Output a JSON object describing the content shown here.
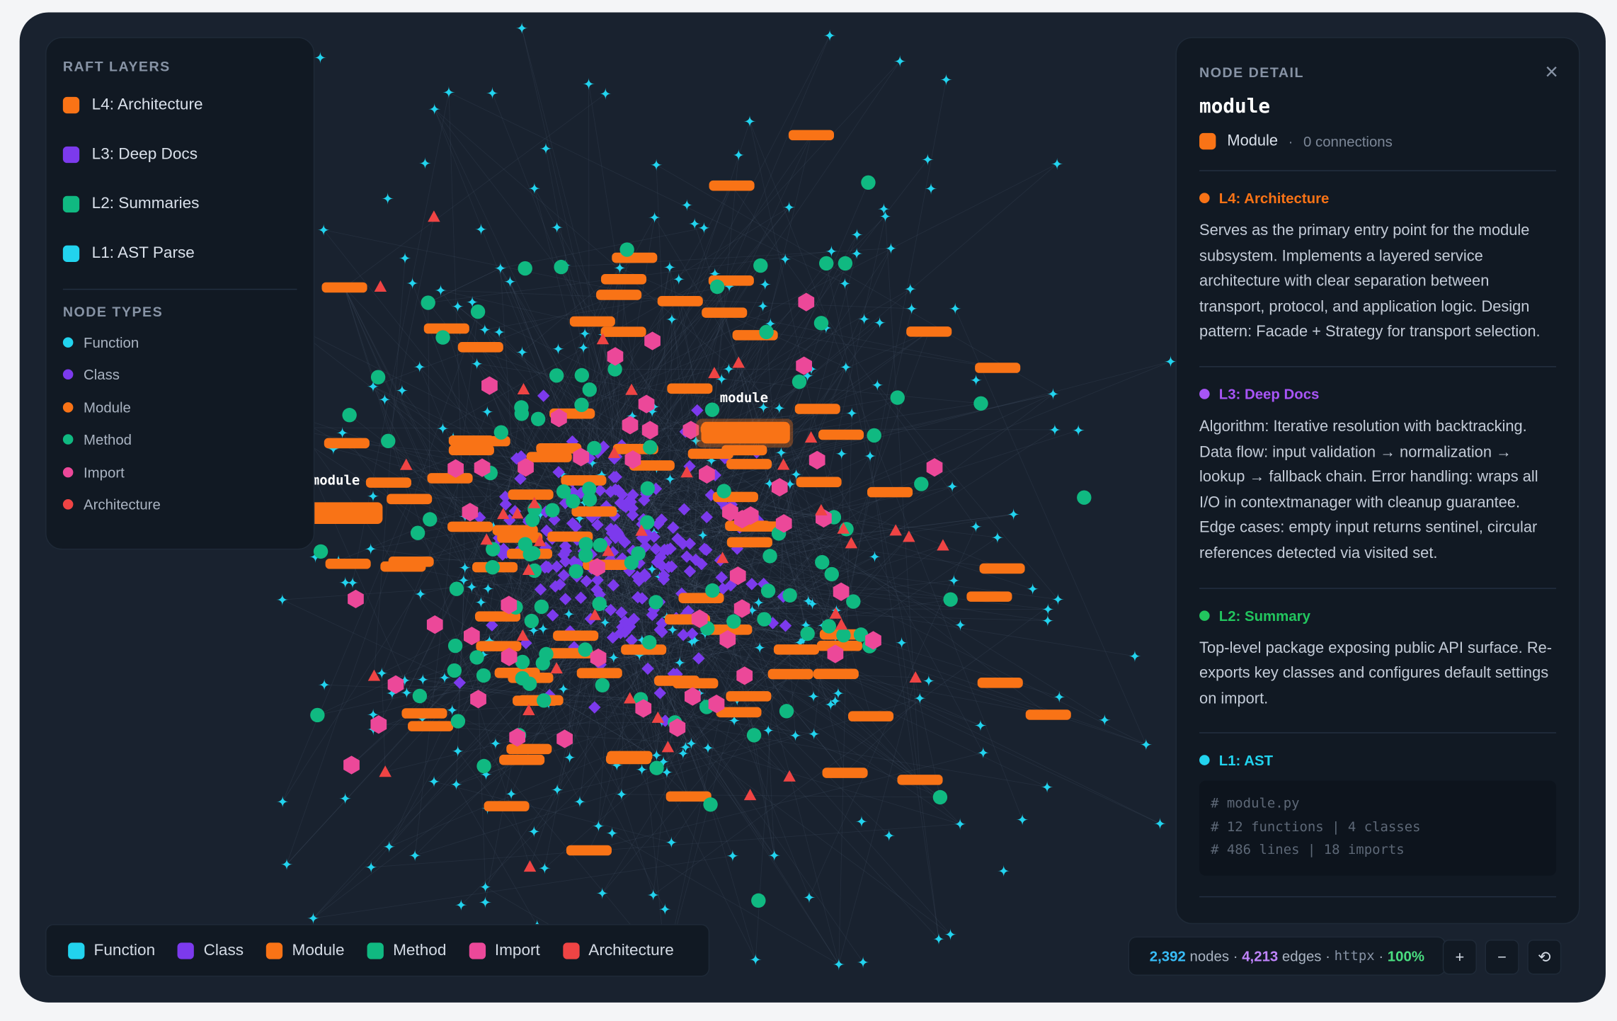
{
  "layers_panel": {
    "title": "RAFT LAYERS",
    "layers": [
      {
        "label": "L4: Architecture",
        "color": "#f97316"
      },
      {
        "label": "L3: Deep Docs",
        "color": "#7c3aed"
      },
      {
        "label": "L2: Summaries",
        "color": "#10b981"
      },
      {
        "label": "L1: AST Parse",
        "color": "#22d3ee"
      }
    ]
  },
  "node_types_panel": {
    "title": "NODE TYPES",
    "types": [
      {
        "label": "Function",
        "color": "#22d3ee"
      },
      {
        "label": "Class",
        "color": "#7c3aed"
      },
      {
        "label": "Module",
        "color": "#f97316"
      },
      {
        "label": "Method",
        "color": "#10b981"
      },
      {
        "label": "Import",
        "color": "#ec4899"
      },
      {
        "label": "Architecture",
        "color": "#ef4444"
      }
    ]
  },
  "graph": {
    "labels": [
      "module",
      "module"
    ]
  },
  "legend": {
    "items": [
      {
        "label": "Function",
        "color": "#22d3ee"
      },
      {
        "label": "Class",
        "color": "#7c3aed"
      },
      {
        "label": "Module",
        "color": "#f97316"
      },
      {
        "label": "Method",
        "color": "#10b981"
      },
      {
        "label": "Import",
        "color": "#ec4899"
      },
      {
        "label": "Architecture",
        "color": "#ef4444"
      }
    ]
  },
  "detail": {
    "title": "NODE DETAIL",
    "close": "×",
    "name": "module",
    "type": "Module",
    "type_color": "#f97316",
    "separator": "·",
    "connections": "0 connections",
    "sections": [
      {
        "heading": "L4: Architecture",
        "color": "#f97316",
        "text": "Serves as the primary entry point for the module subsystem. Implements a layered service architecture with clear separation between transport, protocol, and application logic. Design pattern: Facade + Strategy for transport selection."
      },
      {
        "heading": "L3: Deep Docs",
        "color": "#a855f7",
        "text": "Algorithm: Iterative resolution with backtracking. Data flow: input validation → normalization → lookup → fallback chain. Error handling: wraps all I/O in contextmanager with cleanup guarantee. Edge cases: empty input returns sentinel, circular references detected via visited set."
      },
      {
        "heading": "L2: Summary",
        "color": "#22c55e",
        "text": "Top-level package exposing public API surface. Re-exports key classes and configures default settings on import."
      },
      {
        "heading": "L1: AST",
        "color": "#22d3ee",
        "code": [
          "# module.py",
          "# 12 functions | 4 classes",
          "# 486 lines | 18 imports"
        ]
      }
    ]
  },
  "status": {
    "nodes": "2,392",
    "nodes_label": "nodes",
    "sep": "·",
    "edges": "4,213",
    "edges_label": "edges",
    "repo": "httpx",
    "zoom": "100%"
  },
  "controls": [
    "+",
    "−",
    "⟲"
  ]
}
